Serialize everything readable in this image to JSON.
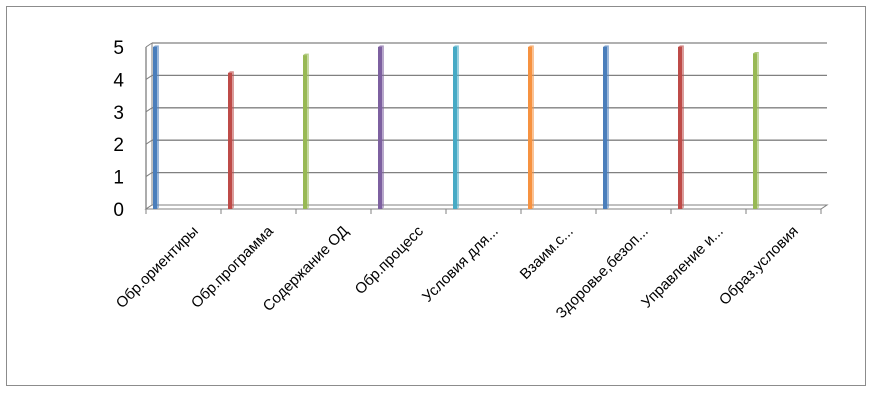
{
  "chart_data": {
    "type": "bar",
    "categories": [
      "Обр.ориентиры",
      "Обр.программа",
      "Содержание ОД",
      "Обр.процесс",
      "Условия для...",
      "Взаим.с...",
      "Здоровье,безоп...",
      "Управление и...",
      "Образ.условия"
    ],
    "values": [
      5,
      4.2,
      4.75,
      5,
      5,
      5,
      5,
      5,
      4.8
    ],
    "colors": [
      "#4a7ebb",
      "#be4b48",
      "#98b954",
      "#7d60a0",
      "#46aac5",
      "#f69240",
      "#4a7ebb",
      "#be4b48",
      "#98b954"
    ],
    "yticks": [
      "0",
      "1",
      "2",
      "3",
      "4",
      "5"
    ],
    "ylim": [
      0,
      5
    ],
    "grid": true,
    "legend": "none",
    "title": "",
    "xlabel": "",
    "ylabel": ""
  }
}
